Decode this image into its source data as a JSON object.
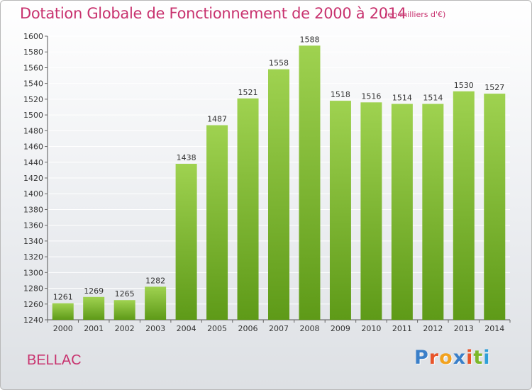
{
  "header": {
    "title": "Dotation Globale de Fonctionnement de 2000 à 2014",
    "subtitle": "(en milliers d'€)"
  },
  "footer": {
    "city": "BELLAC",
    "brand_letters": [
      "P",
      "r",
      "o",
      "x",
      "i",
      "t",
      "i"
    ]
  },
  "colors": {
    "title": "#c8326e",
    "bar_top": "#9fd250",
    "bar_bottom": "#5e9a18",
    "grid": "#ffffff",
    "brand": [
      "#3a7fc9",
      "#e8542a",
      "#f2a21f",
      "#3a7fc9",
      "#e8542a",
      "#7cb829",
      "#2f9fd8"
    ]
  },
  "chart_data": {
    "type": "bar",
    "title": "Dotation Globale de Fonctionnement de 2000 à 2014",
    "subtitle": "(en milliers d'€)",
    "categories": [
      "2000",
      "2001",
      "2002",
      "2003",
      "2004",
      "2005",
      "2006",
      "2007",
      "2008",
      "2009",
      "2010",
      "2011",
      "2012",
      "2013",
      "2014"
    ],
    "values": [
      1261,
      1269,
      1265,
      1282,
      1438,
      1487,
      1521,
      1558,
      1588,
      1518,
      1516,
      1514,
      1514,
      1530,
      1527
    ],
    "ylim": [
      1240,
      1600
    ],
    "yticks": [
      1240,
      1260,
      1280,
      1300,
      1320,
      1340,
      1360,
      1380,
      1400,
      1420,
      1440,
      1460,
      1480,
      1500,
      1520,
      1540,
      1560,
      1580,
      1600
    ],
    "grid": true,
    "legend": "none"
  }
}
